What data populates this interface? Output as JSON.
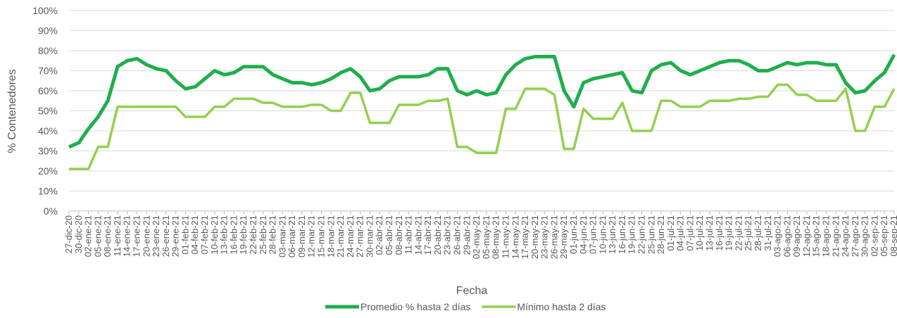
{
  "chart_data": {
    "type": "line",
    "x_label": "Fecha",
    "y_label": "% Contenedores",
    "categories": [
      "27-dic-20",
      "30-dic-20",
      "02-ene-21",
      "05-ene-21",
      "08-ene-21",
      "11-ene-21",
      "14-ene-21",
      "17-ene-21",
      "20-ene-21",
      "23-ene-21",
      "26-ene-21",
      "29-ene-21",
      "01-feb-21",
      "04-feb-21",
      "07-feb-21",
      "10-feb-21",
      "13-feb-21",
      "16-feb-21",
      "19-feb-21",
      "22-feb-21",
      "25-feb-21",
      "28-feb-21",
      "03-mar-21",
      "06-mar-21",
      "09-mar-21",
      "12-mar-21",
      "15-mar-21",
      "18-mar-21",
      "21-mar-21",
      "24-mar-21",
      "27-mar-21",
      "30-mar-21",
      "02-abr-21",
      "05-abr-21",
      "08-abr-21",
      "11-abr-21",
      "14-abr-21",
      "17-abr-21",
      "20-abr-21",
      "23-abr-21",
      "26-abr-21",
      "29-abr-21",
      "02-may-21",
      "05-may-21",
      "08-may-21",
      "11-may-21",
      "14-may-21",
      "17-may-21",
      "20-may-21",
      "23-may-21",
      "26-may-21",
      "29-may-21",
      "01-jun-21",
      "04-jun-21",
      "07-jun-21",
      "10-jun-21",
      "13-jun-21",
      "16-jun-21",
      "19-jun-21",
      "22-jun-21",
      "25-jun-21",
      "28-jun-21",
      "01-jul-21",
      "04-jul-21",
      "07-jul-21",
      "10-jul-21",
      "13-jul-21",
      "16-jul-21",
      "19-jul-21",
      "22-jul-21",
      "25-jul-21",
      "28-jul-21",
      "31-jul-21",
      "03-ago-21",
      "06-ago-21",
      "09-ago-21",
      "12-ago-21",
      "15-ago-21",
      "18-ago-21",
      "21-ago-21",
      "24-ago-21",
      "27-ago-21",
      "30-ago-21",
      "02-sep-21",
      "05-sep-21",
      "08-sep-21"
    ],
    "series": [
      {
        "name": "Promedio % hasta 2 días",
        "color": "#1fae4b",
        "values": [
          32,
          34,
          41,
          47,
          55,
          72,
          75,
          76,
          73,
          71,
          70,
          65,
          61,
          62,
          66,
          70,
          68,
          69,
          72,
          72,
          72,
          68,
          66,
          64,
          64,
          63,
          64,
          66,
          69,
          71,
          67,
          60,
          61,
          65,
          67,
          67,
          67,
          68,
          71,
          71,
          60,
          58,
          60,
          58,
          59,
          68,
          73,
          76,
          77,
          77,
          77,
          60,
          52,
          64,
          66,
          67,
          68,
          69,
          60,
          59,
          70,
          73,
          74,
          70,
          68,
          70,
          72,
          74,
          75,
          75,
          73,
          70,
          70,
          72,
          74,
          73,
          74,
          74,
          73,
          73,
          64,
          59,
          60,
          65,
          69,
          78
        ]
      },
      {
        "name": "Mínimo hasta 2 días",
        "color": "#92d050",
        "values": [
          21,
          21,
          21,
          32,
          32,
          52,
          52,
          52,
          52,
          52,
          52,
          52,
          47,
          47,
          47,
          52,
          52,
          56,
          56,
          56,
          54,
          54,
          52,
          52,
          52,
          53,
          53,
          50,
          50,
          59,
          59,
          44,
          44,
          44,
          53,
          53,
          53,
          55,
          55,
          56,
          32,
          32,
          29,
          29,
          29,
          51,
          51,
          61,
          61,
          61,
          58,
          31,
          31,
          51,
          46,
          46,
          46,
          54,
          40,
          40,
          40,
          55,
          55,
          52,
          52,
          52,
          55,
          55,
          55,
          56,
          56,
          57,
          57,
          63,
          63,
          58,
          58,
          55,
          55,
          55,
          61,
          40,
          40,
          52,
          52,
          61
        ]
      }
    ],
    "ylim": [
      0,
      100
    ],
    "yticks": [
      {
        "value": 0,
        "label": "0%"
      },
      {
        "value": 10,
        "label": "10%"
      },
      {
        "value": 20,
        "label": "20%"
      },
      {
        "value": 30,
        "label": "30%"
      },
      {
        "value": 40,
        "label": "40%"
      },
      {
        "value": 50,
        "label": "50%"
      },
      {
        "value": 60,
        "label": "60%"
      },
      {
        "value": 70,
        "label": "70%"
      },
      {
        "value": 80,
        "label": "80%"
      },
      {
        "value": 90,
        "label": "90%"
      },
      {
        "value": 100,
        "label": "100%"
      }
    ],
    "grid": true
  }
}
